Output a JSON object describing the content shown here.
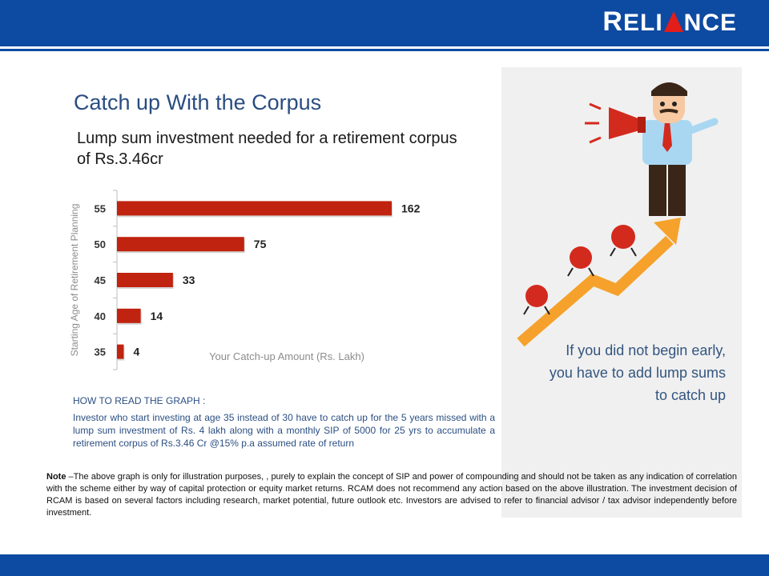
{
  "brand": {
    "logo_text": "RELIANCE"
  },
  "slide": {
    "title": "Catch up With the Corpus",
    "subtitle": "Lump sum investment needed for a retirement corpus of Rs.3.46cr",
    "panel_text": "If you did not begin early, you have to add lump sums to catch up",
    "how_title": "HOW TO READ THE GRAPH :",
    "how_body": "Investor who start investing at age 35 instead of 30 have to catch up for the 5 years missed with a lump sum investment of Rs. 4 lakh along with a monthly SIP of 5000 for 25 yrs to accumulate a retirement corpus of Rs.3.46 Cr @15% p.a assumed rate of return",
    "note_label": "Note",
    "note_body": " –The above graph is only for illustration purposes, , purely to explain the concept of SIP and power of compounding and should not be taken as any indication of correlation with the scheme either by way of capital protection or equity market returns. RCAM does not recommend any action based on the above illustration. The investment decision of RCAM is based on several factors including research, market potential, future outlook etc. Investors are advised to refer to financial advisor / tax advisor independently before investment."
  },
  "chart_data": {
    "type": "bar",
    "orientation": "horizontal",
    "categories": [
      "55",
      "50",
      "45",
      "40",
      "35"
    ],
    "values": [
      162,
      75,
      33,
      14,
      4
    ],
    "ylabel": "Starting Age of Retirement Planning",
    "xlabel": "Your Catch-up Amount (Rs. Lakh)",
    "xlim": [
      0,
      162
    ],
    "grid": false,
    "bar_color": "#c0230f"
  },
  "colors": {
    "brand_blue": "#0d4aa1",
    "logo_red": "#e31d1a",
    "arrow_orange": "#f5a12b"
  }
}
